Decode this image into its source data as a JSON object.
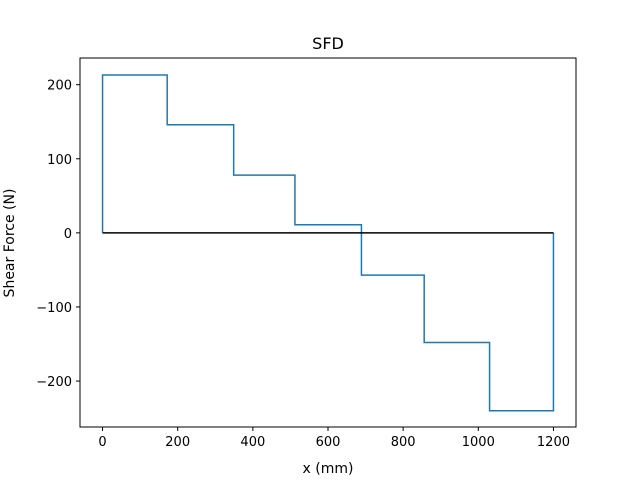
{
  "chart_data": {
    "type": "line",
    "title": "SFD",
    "xlabel": "x (mm)",
    "ylabel": "Shear Force (N)",
    "xlim": [
      -60,
      1260
    ],
    "ylim": [
      -262,
      236
    ],
    "xticks": [
      0,
      200,
      400,
      600,
      800,
      1000,
      1200
    ],
    "xtick_labels": [
      "0",
      "200",
      "400",
      "600",
      "800",
      "1000",
      "1200"
    ],
    "yticks": [
      -200,
      -100,
      0,
      100,
      200
    ],
    "ytick_labels": [
      "−200",
      "−100",
      "0",
      "100",
      "200"
    ],
    "grid": false,
    "legend": "none",
    "series": [
      {
        "color": "#1f77b4",
        "x": [
          0,
          0,
          172,
          172,
          349,
          349,
          512,
          512,
          689,
          689,
          856,
          856,
          1030,
          1030,
          1200,
          1200
        ],
        "y": [
          0,
          213,
          213,
          146,
          146,
          78,
          78,
          11,
          11,
          -57,
          -57,
          -148,
          -148,
          -240,
          -240,
          0
        ]
      },
      {
        "color": "#000000",
        "x": [
          0,
          1200
        ],
        "y": [
          0,
          0
        ]
      }
    ]
  }
}
